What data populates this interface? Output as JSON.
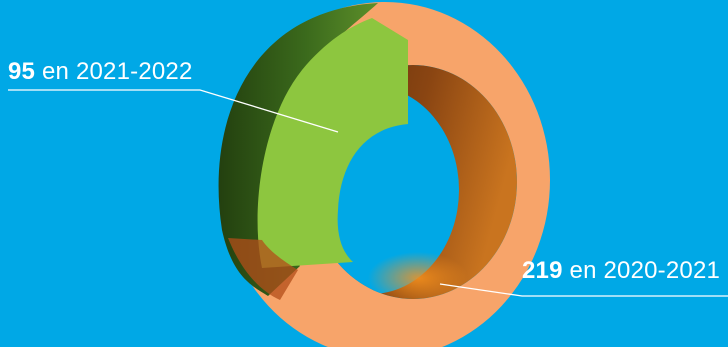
{
  "colors": {
    "background": "#00a8e6",
    "green": "#8dc63f",
    "green_dark": "#2f5516",
    "orange": "#f7a46a",
    "orange_shadow": "#8a3f12",
    "leader": "#ffffff"
  },
  "chart_data": {
    "type": "pie",
    "style": "3d-donut",
    "legend": "none",
    "slices": [
      {
        "label": "en 2021-2022",
        "value": 95,
        "color": "#8dc63f"
      },
      {
        "label": "en 2020-2021",
        "value": 219,
        "color": "#f7a46a"
      }
    ]
  }
}
